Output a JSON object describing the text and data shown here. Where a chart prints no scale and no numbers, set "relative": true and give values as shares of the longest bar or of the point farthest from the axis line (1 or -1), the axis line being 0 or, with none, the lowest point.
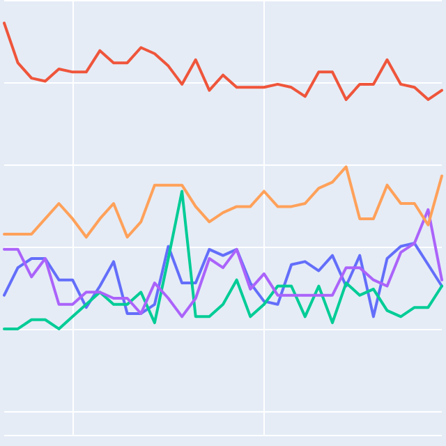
{
  "chart_data": {
    "type": "line",
    "relative": true,
    "grid": true,
    "marker": "none",
    "line_style": "solid",
    "categories": [
      null,
      null,
      null,
      null,
      null,
      null,
      null,
      null,
      null,
      null,
      null,
      null,
      null,
      null,
      null,
      null,
      null,
      null,
      null,
      null,
      null,
      null,
      null,
      null,
      null,
      null,
      null,
      null,
      null,
      null,
      null,
      null,
      null
    ],
    "series": [
      {
        "color": "#636efa",
        "values": [
          0.11,
          0.2,
          0.23,
          0.23,
          0.16,
          0.16,
          0.07,
          0.14,
          0.22,
          0.05,
          0.05,
          0.08,
          0.27,
          0.15,
          0.15,
          0.26,
          0.24,
          0.26,
          0.15,
          0.09,
          0.08,
          0.21,
          0.22,
          0.19,
          0.24,
          0.14,
          0.24,
          0.04,
          0.23,
          0.27,
          0.28,
          0.21,
          0.14
        ]
      },
      {
        "color": "#ef553b",
        "values": [
          1,
          0.87,
          0.82,
          0.81,
          0.85,
          0.84,
          0.84,
          0.91,
          0.87,
          0.87,
          0.92,
          0.9,
          0.86,
          0.8,
          0.88,
          0.78,
          0.83,
          0.79,
          0.79,
          0.79,
          0.8,
          0.79,
          0.76,
          0.84,
          0.84,
          0.75,
          0.8,
          0.8,
          0.88,
          0.8,
          0.79,
          0.75,
          0.78
        ]
      },
      {
        "color": "#00cc96",
        "values": [
          0,
          0,
          0.03,
          0.03,
          0,
          0.04,
          0.08,
          0.12,
          0.08,
          0.08,
          0.12,
          0.02,
          0.23,
          0.45,
          0.04,
          0.04,
          0.08,
          0.16,
          0.04,
          0.08,
          0.14,
          0.14,
          0.04,
          0.14,
          0.02,
          0.15,
          0.11,
          0.13,
          0.06,
          0.04,
          0.07,
          0.07,
          0.14
        ]
      },
      {
        "color": "#ab63fa",
        "values": [
          0.26,
          0.26,
          0.17,
          0.23,
          0.08,
          0.08,
          0.12,
          0.12,
          0.1,
          0.1,
          0.05,
          0.15,
          0.1,
          0.04,
          0.1,
          0.23,
          0.2,
          0.26,
          0.13,
          0.18,
          0.11,
          0.11,
          0.11,
          0.11,
          0.11,
          0.2,
          0.2,
          0.16,
          0.14,
          0.25,
          0.28,
          0.39,
          0.16
        ]
      },
      {
        "color": "#ffa15a",
        "values": [
          0.31,
          0.31,
          0.31,
          0.36,
          0.41,
          0.36,
          0.3,
          0.36,
          0.41,
          0.3,
          0.35,
          0.47,
          0.47,
          0.47,
          0.4,
          0.35,
          0.38,
          0.4,
          0.4,
          0.45,
          0.4,
          0.4,
          0.41,
          0.46,
          0.48,
          0.53,
          0.36,
          0.36,
          0.47,
          0.41,
          0.41,
          0.34,
          0.5
        ]
      }
    ]
  }
}
